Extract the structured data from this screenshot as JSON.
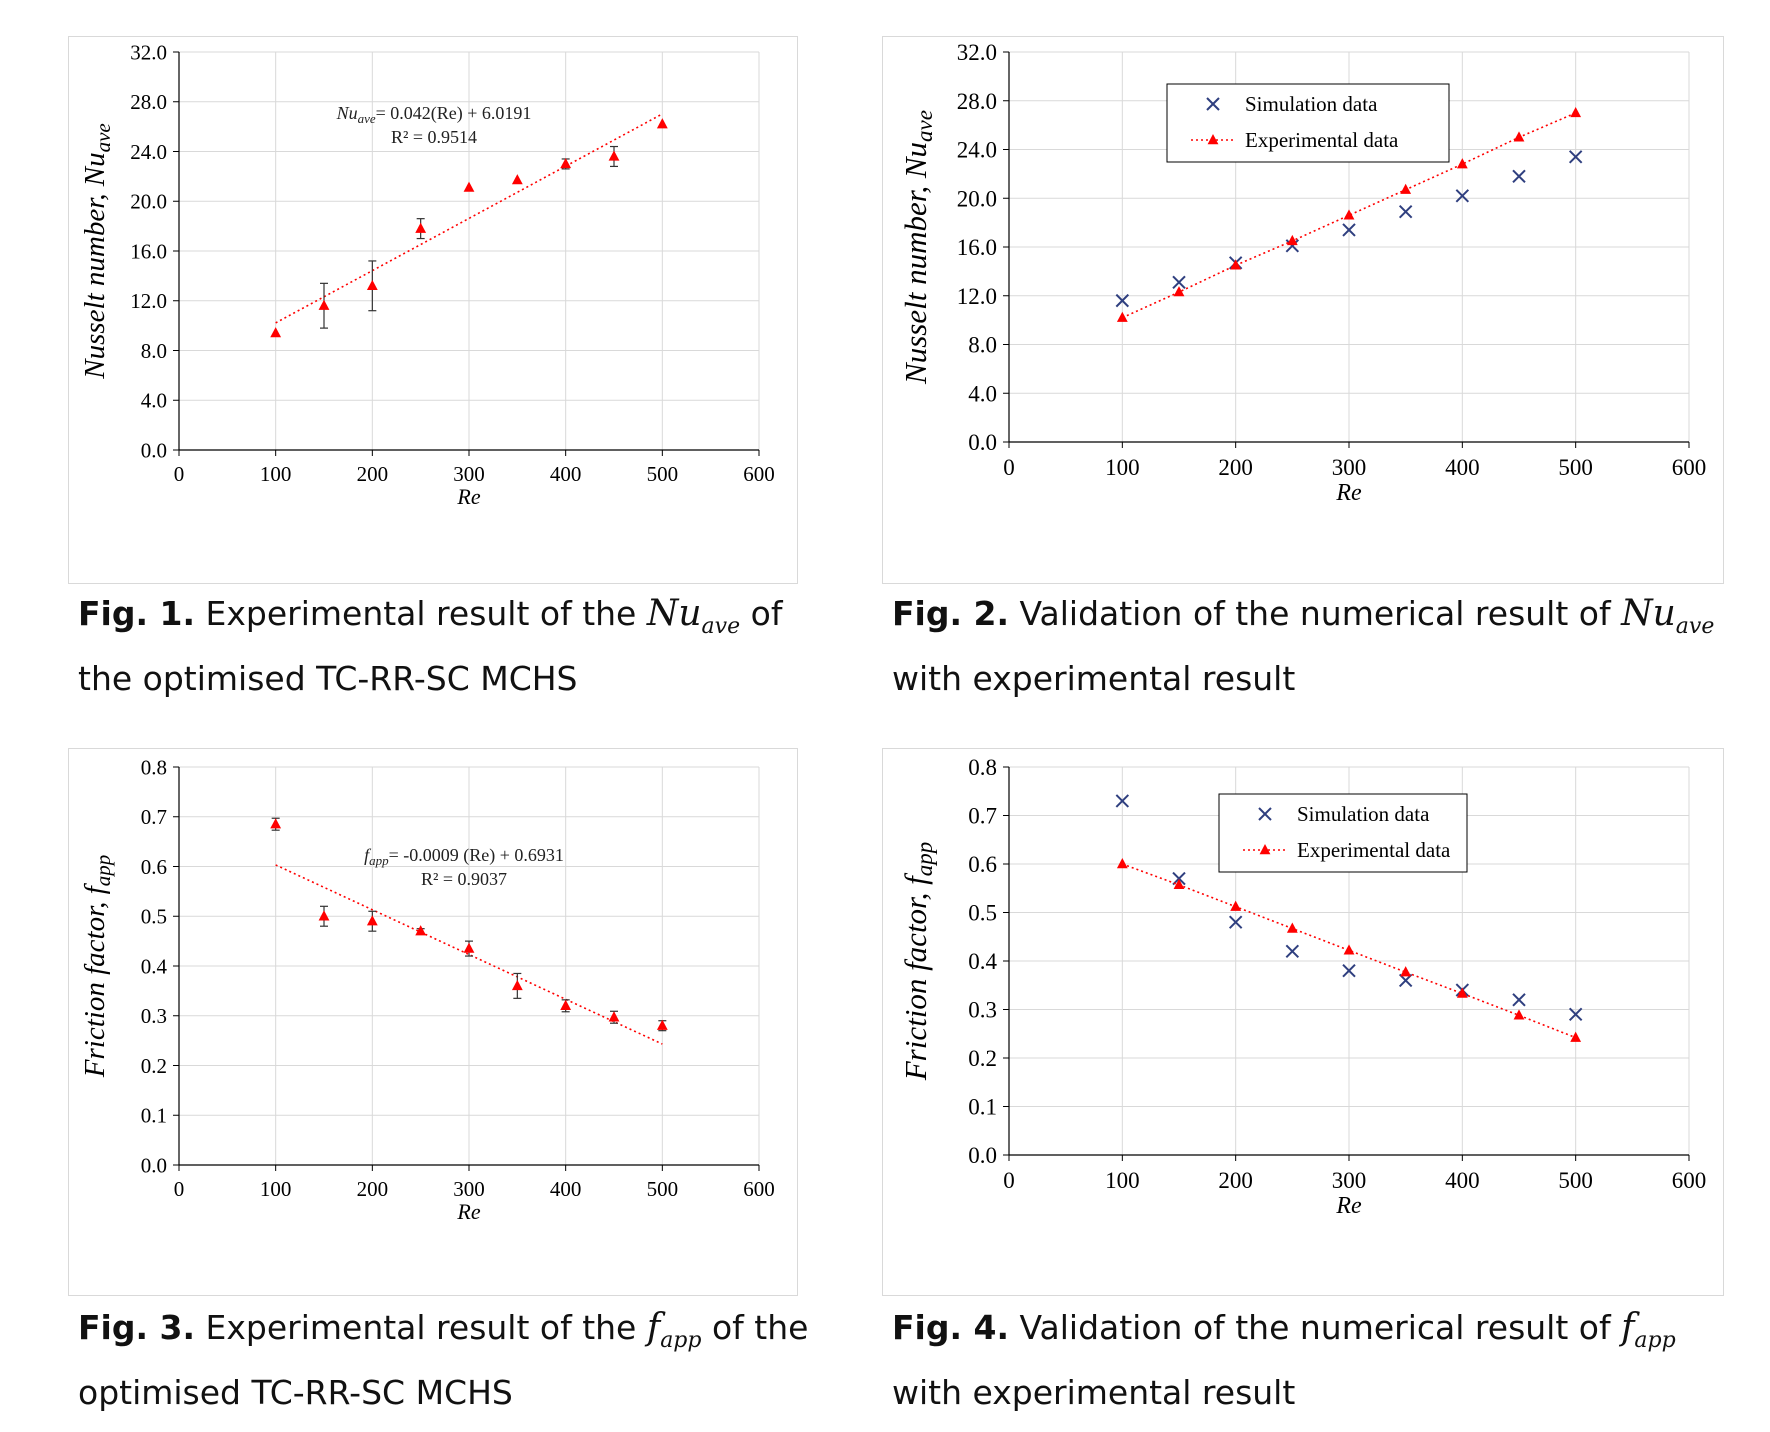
{
  "figures": [
    {
      "caption_bold": "Fig. 1.",
      "caption_pre": "Experimental result of the",
      "caption_sym_main": "Nu",
      "caption_sym_sub": "ave",
      "caption_post": "of the optimised TC-RR-SC MCHS"
    },
    {
      "caption_bold": "Fig. 2.",
      "caption_pre": "Validation of the numerical result of",
      "caption_sym_main": "Nu",
      "caption_sym_sub": "ave",
      "caption_post": "with experimental result"
    },
    {
      "caption_bold": "Fig. 3.",
      "caption_pre": "Experimental result of the",
      "caption_sym_main": "f",
      "caption_sym_sub": "app",
      "caption_post": "of the optimised TC-RR-SC MCHS"
    },
    {
      "caption_bold": "Fig. 4.",
      "caption_pre": "Validation of the numerical result of",
      "caption_sym_main": "f",
      "caption_sym_sub": "app",
      "caption_post": "with experimental result"
    }
  ],
  "chart_data": [
    {
      "type": "scatter",
      "xlabel": "Re",
      "ylabel_main": "Nusselt number, Nu",
      "ylabel_sub": "ave",
      "xlim": [
        0,
        600
      ],
      "ylim": [
        0,
        32
      ],
      "x_ticks": [
        "0",
        "100",
        "200",
        "300",
        "400",
        "500",
        "600"
      ],
      "y_ticks": [
        "0.0",
        "4.0",
        "8.0",
        "12.0",
        "16.0",
        "20.0",
        "24.0",
        "28.0",
        "32.0"
      ],
      "grid": true,
      "series": [
        {
          "x": [
            100,
            150,
            200,
            250,
            300,
            350,
            400,
            450,
            500
          ],
          "y": [
            9.4,
            11.6,
            13.2,
            17.8,
            21.1,
            21.7,
            23.0,
            23.6,
            26.2
          ],
          "err": [
            0,
            1.8,
            2.0,
            0.8,
            0,
            0,
            0.4,
            0.8,
            0
          ],
          "marker": "triangle",
          "color": "#ff0000"
        }
      ],
      "trendline": {
        "x": [
          100,
          500
        ],
        "y": [
          10.22,
          27.02
        ],
        "color": "#ff0000",
        "eq_main": "Nu",
        "eq_sub": "ave",
        "eq_rest": "= 0.042(Re) + 6.0191",
        "r2": "R² = 0.9514"
      }
    },
    {
      "type": "scatter",
      "xlabel": "Re",
      "ylabel_main": "Nusselt number, Nu",
      "ylabel_sub": "ave",
      "xlim": [
        0,
        600
      ],
      "ylim": [
        0,
        32
      ],
      "x_ticks": [
        "0",
        "100",
        "200",
        "300",
        "400",
        "500",
        "600"
      ],
      "y_ticks": [
        "0.0",
        "4.0",
        "8.0",
        "12.0",
        "16.0",
        "20.0",
        "24.0",
        "28.0",
        "32.0"
      ],
      "grid": true,
      "legend": "top-left",
      "series": [
        {
          "name": "Simulation data",
          "x": [
            100,
            150,
            200,
            250,
            300,
            350,
            400,
            450,
            500
          ],
          "y": [
            11.6,
            13.1,
            14.7,
            16.1,
            17.4,
            18.9,
            20.2,
            21.8,
            23.4
          ],
          "marker": "x",
          "color": "#2f3f7f"
        },
        {
          "name": "Experimental data",
          "x": [
            100,
            150,
            200,
            250,
            300,
            350,
            400,
            450,
            500
          ],
          "y": [
            10.2,
            12.3,
            14.5,
            16.5,
            18.6,
            20.7,
            22.8,
            25.0,
            27.0
          ],
          "marker": "triangle",
          "line": "dotted",
          "color": "#ff0000"
        }
      ]
    },
    {
      "type": "scatter",
      "xlabel": "Re",
      "ylabel_main": "Friction factor, f",
      "ylabel_sub": "app",
      "xlim": [
        0,
        600
      ],
      "ylim": [
        0,
        0.8
      ],
      "x_ticks": [
        "0",
        "100",
        "200",
        "300",
        "400",
        "500",
        "600"
      ],
      "y_ticks": [
        "0.0",
        "0.1",
        "0.2",
        "0.3",
        "0.4",
        "0.5",
        "0.6",
        "0.7",
        "0.8"
      ],
      "grid": true,
      "series": [
        {
          "x": [
            100,
            150,
            200,
            250,
            300,
            350,
            400,
            450,
            500
          ],
          "y": [
            0.685,
            0.5,
            0.49,
            0.47,
            0.435,
            0.36,
            0.32,
            0.297,
            0.28
          ],
          "err": [
            0.012,
            0.02,
            0.02,
            0.005,
            0.015,
            0.025,
            0.012,
            0.012,
            0.01
          ],
          "marker": "triangle",
          "color": "#ff0000"
        }
      ],
      "trendline": {
        "x": [
          100,
          500
        ],
        "y": [
          0.6031,
          0.2431
        ],
        "color": "#ff0000",
        "eq_main": "f",
        "eq_sub": "app",
        "eq_rest": "= -0.0009 (Re) + 0.6931",
        "r2": "R² = 0.9037"
      }
    },
    {
      "type": "scatter",
      "xlabel": "Re",
      "ylabel_main": "Friction factor, f",
      "ylabel_sub": "app",
      "xlim": [
        0,
        600
      ],
      "ylim": [
        0,
        0.8
      ],
      "x_ticks": [
        "0",
        "100",
        "200",
        "300",
        "400",
        "500",
        "600"
      ],
      "y_ticks": [
        "0.0",
        "0.1",
        "0.2",
        "0.3",
        "0.4",
        "0.5",
        "0.6",
        "0.7",
        "0.8"
      ],
      "grid": true,
      "legend": "top-center",
      "series": [
        {
          "name": "Simulation data",
          "x": [
            100,
            150,
            200,
            250,
            300,
            350,
            400,
            450,
            500
          ],
          "y": [
            0.73,
            0.57,
            0.48,
            0.42,
            0.38,
            0.36,
            0.34,
            0.32,
            0.29
          ],
          "marker": "x",
          "color": "#2f3f7f"
        },
        {
          "name": "Experimental data",
          "x": [
            100,
            150,
            200,
            250,
            300,
            350,
            400,
            450,
            500
          ],
          "y": [
            0.6,
            0.557,
            0.512,
            0.467,
            0.422,
            0.377,
            0.333,
            0.288,
            0.242
          ],
          "marker": "triangle",
          "line": "dotted",
          "color": "#ff0000"
        }
      ]
    }
  ]
}
